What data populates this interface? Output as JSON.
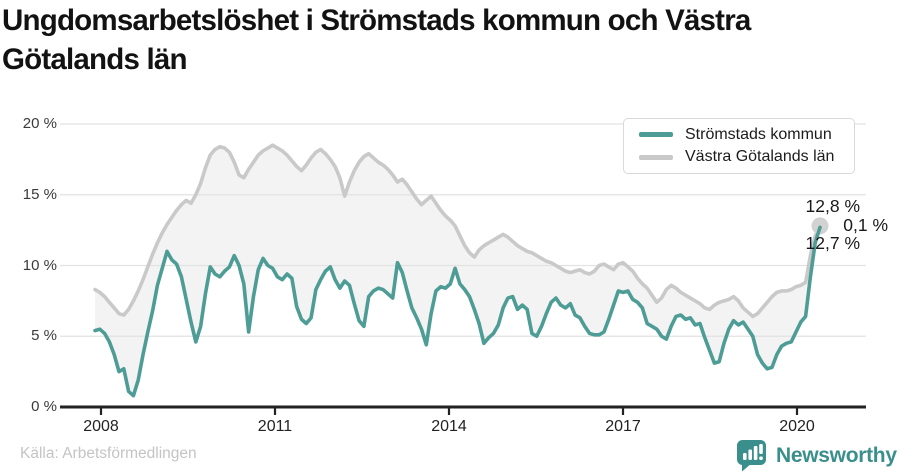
{
  "title": "Ungdomsarbetslöshet i Strömstads kommun och Västra Götalands län",
  "legend": [
    {
      "label": "Strömstads kommun",
      "color": "#4e9c96"
    },
    {
      "label": "Västra Götalands län",
      "color": "#c9c9c9"
    }
  ],
  "annotations": {
    "county_end_label": "12,8 %",
    "difference_label": "0,1 %",
    "municipality_end_label": "12,7 %"
  },
  "footer": {
    "source": "Källa: Arbetsförmedlingen",
    "brand": "Newsworthy"
  },
  "colors": {
    "municipality_line": "#4e9c96",
    "county_line": "#c9c9c9",
    "band_fill": "#f3f3f3",
    "end_dot": "#d2d2d2",
    "axis": "#222222",
    "gridline": "#e2e2e2",
    "brand_teal": "#3a8f8c"
  },
  "chart_data": {
    "type": "line",
    "title": "Ungdomsarbetslöshet i Strömstads kommun och Västra Götalands län",
    "frequency": "monthly",
    "x_start": "2007-12",
    "x_end": "2020-07",
    "ylim": [
      0,
      20
    ],
    "grid": "horizontal",
    "legend_position": "top-right",
    "y_ticks": [
      "20 %",
      "15 %",
      "10 %",
      "5 %",
      "0 %"
    ],
    "x_ticks": [
      "2008",
      "2011",
      "2014",
      "2017",
      "2020"
    ],
    "end_values": {
      "municipality": 12.7,
      "county": 12.8,
      "difference": 0.1
    },
    "series": [
      {
        "name": "Strömstads kommun",
        "values": [
          5.4,
          5.5,
          5.2,
          4.6,
          3.7,
          2.5,
          2.7,
          1.1,
          0.8,
          1.9,
          3.7,
          5.3,
          6.8,
          8.6,
          9.8,
          11.0,
          10.4,
          10.1,
          9.2,
          7.6,
          6.0,
          4.6,
          5.7,
          8.0,
          9.9,
          9.4,
          9.2,
          9.6,
          9.9,
          10.7,
          10.0,
          8.7,
          5.3,
          7.8,
          9.7,
          10.5,
          10.0,
          9.8,
          9.2,
          9.0,
          9.4,
          9.1,
          7.1,
          6.2,
          5.9,
          6.3,
          8.3,
          9.0,
          9.6,
          9.9,
          9.0,
          8.4,
          8.9,
          8.6,
          7.3,
          6.1,
          5.7,
          7.8,
          8.2,
          8.4,
          8.3,
          8.0,
          7.7,
          10.2,
          9.5,
          8.2,
          7.0,
          6.3,
          5.5,
          4.4,
          6.6,
          8.2,
          8.5,
          8.4,
          8.7,
          9.8,
          8.7,
          8.3,
          7.8,
          6.9,
          5.9,
          4.5,
          4.9,
          5.2,
          5.8,
          7.0,
          7.7,
          7.8,
          6.9,
          7.2,
          6.9,
          5.2,
          5.0,
          5.7,
          6.6,
          7.4,
          7.7,
          7.2,
          7.0,
          7.3,
          6.5,
          6.3,
          5.7,
          5.2,
          5.1,
          5.1,
          5.3,
          6.2,
          7.2,
          8.2,
          8.1,
          8.2,
          7.6,
          7.4,
          7.0,
          5.9,
          5.7,
          5.5,
          5.0,
          4.8,
          5.7,
          6.4,
          6.5,
          6.2,
          6.3,
          5.8,
          5.9,
          4.9,
          4.0,
          3.1,
          3.2,
          4.5,
          5.5,
          6.1,
          5.8,
          6.0,
          5.5,
          5.0,
          3.7,
          3.1,
          2.7,
          2.8,
          3.7,
          4.3,
          4.5,
          4.6,
          5.3,
          6.0,
          6.4,
          9.2,
          11.6,
          12.7
        ]
      },
      {
        "name": "Västra Götalands län",
        "values": [
          8.3,
          8.1,
          7.8,
          7.4,
          7.0,
          6.6,
          6.5,
          6.9,
          7.5,
          8.2,
          9.0,
          9.9,
          10.8,
          11.6,
          12.3,
          12.9,
          13.4,
          13.9,
          14.3,
          14.6,
          14.4,
          15.0,
          15.8,
          16.9,
          17.8,
          18.2,
          18.4,
          18.3,
          18.0,
          17.3,
          16.4,
          16.2,
          16.8,
          17.3,
          17.8,
          18.1,
          18.3,
          18.5,
          18.3,
          18.1,
          17.8,
          17.4,
          17.0,
          16.7,
          17.1,
          17.6,
          18.0,
          18.2,
          17.9,
          17.5,
          17.0,
          16.2,
          14.9,
          15.9,
          16.7,
          17.3,
          17.7,
          17.9,
          17.6,
          17.3,
          17.1,
          16.8,
          16.4,
          15.9,
          16.1,
          15.7,
          15.2,
          14.7,
          14.3,
          14.6,
          14.9,
          14.4,
          13.9,
          13.5,
          13.2,
          12.8,
          12.1,
          11.4,
          10.9,
          10.6,
          11.1,
          11.4,
          11.6,
          11.8,
          12.0,
          12.2,
          12.0,
          11.7,
          11.4,
          11.2,
          11.0,
          10.9,
          10.7,
          10.5,
          10.3,
          10.2,
          10.0,
          9.8,
          9.6,
          9.5,
          9.6,
          9.7,
          9.5,
          9.4,
          9.6,
          10.0,
          10.1,
          9.9,
          9.7,
          10.1,
          10.2,
          9.9,
          9.6,
          9.1,
          8.7,
          8.4,
          7.9,
          7.4,
          7.7,
          8.3,
          8.6,
          8.4,
          8.1,
          7.9,
          7.7,
          7.5,
          7.3,
          7.0,
          6.9,
          7.2,
          7.4,
          7.5,
          7.6,
          7.8,
          7.5,
          7.0,
          6.7,
          6.4,
          6.6,
          7.0,
          7.4,
          7.8,
          8.1,
          8.2,
          8.2,
          8.3,
          8.5,
          8.6,
          8.8,
          10.7,
          12.1,
          12.8
        ]
      }
    ]
  }
}
